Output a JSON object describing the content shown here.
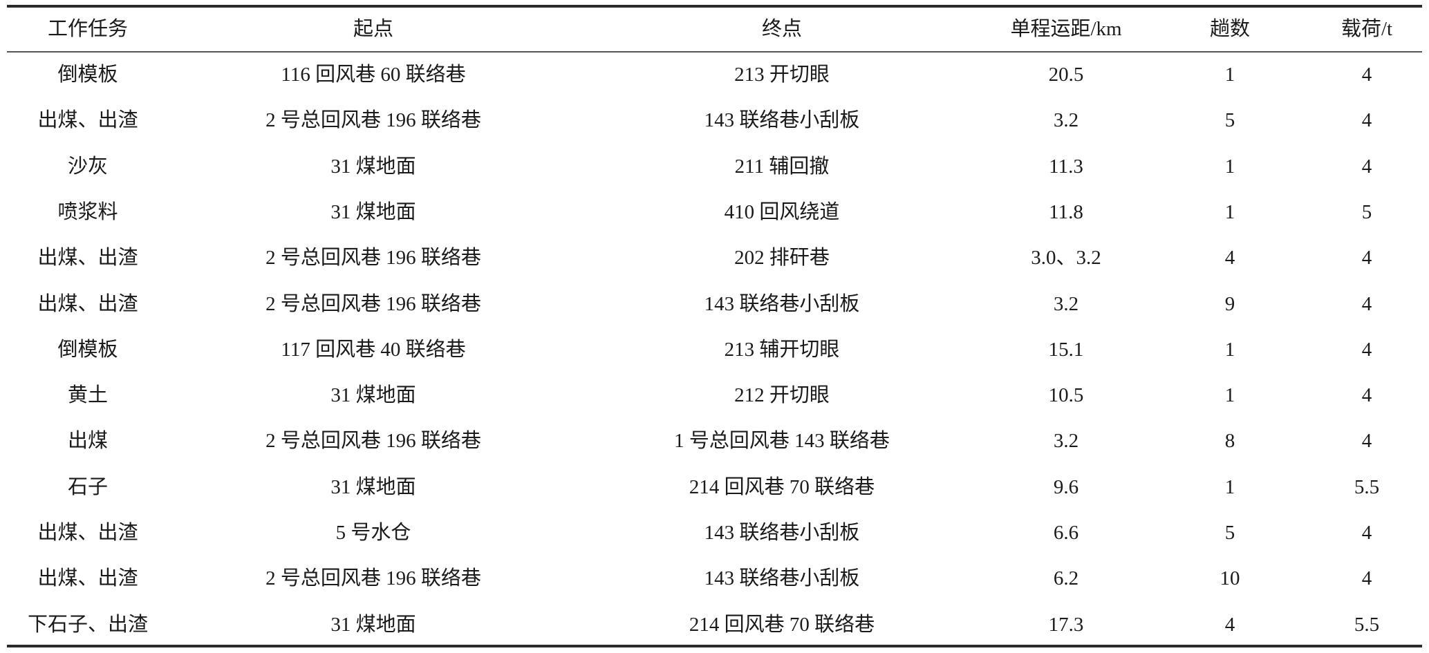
{
  "table": {
    "headers": [
      "工作任务",
      "起点",
      "终点",
      "单程运距/km",
      "趟数",
      "载荷/t"
    ],
    "rows": [
      [
        "倒模板",
        "116 回风巷 60 联络巷",
        "213 开切眼",
        "20.5",
        "1",
        "4"
      ],
      [
        "出煤、出渣",
        "2 号总回风巷 196 联络巷",
        "143 联络巷小刮板",
        "3.2",
        "5",
        "4"
      ],
      [
        "沙灰",
        "31 煤地面",
        "211 辅回撤",
        "11.3",
        "1",
        "4"
      ],
      [
        "喷浆料",
        "31 煤地面",
        "410 回风绕道",
        "11.8",
        "1",
        "5"
      ],
      [
        "出煤、出渣",
        "2 号总回风巷 196 联络巷",
        "202 排矸巷",
        "3.0、3.2",
        "4",
        "4"
      ],
      [
        "出煤、出渣",
        "2 号总回风巷 196 联络巷",
        "143 联络巷小刮板",
        "3.2",
        "9",
        "4"
      ],
      [
        "倒模板",
        "117 回风巷 40 联络巷",
        "213 辅开切眼",
        "15.1",
        "1",
        "4"
      ],
      [
        "黄土",
        "31 煤地面",
        "212 开切眼",
        "10.5",
        "1",
        "4"
      ],
      [
        "出煤",
        "2 号总回风巷 196 联络巷",
        "1 号总回风巷 143 联络巷",
        "3.2",
        "8",
        "4"
      ],
      [
        "石子",
        "31 煤地面",
        "214 回风巷 70 联络巷",
        "9.6",
        "1",
        "5.5"
      ],
      [
        "出煤、出渣",
        "5 号水仓",
        "143 联络巷小刮板",
        "6.6",
        "5",
        "4"
      ],
      [
        "出煤、出渣",
        "2 号总回风巷 196 联络巷",
        "143 联络巷小刮板",
        "6.2",
        "10",
        "4"
      ],
      [
        "下石子、出渣",
        "31 煤地面",
        "214 回风巷 70 联络巷",
        "17.3",
        "4",
        "5.5"
      ]
    ]
  }
}
